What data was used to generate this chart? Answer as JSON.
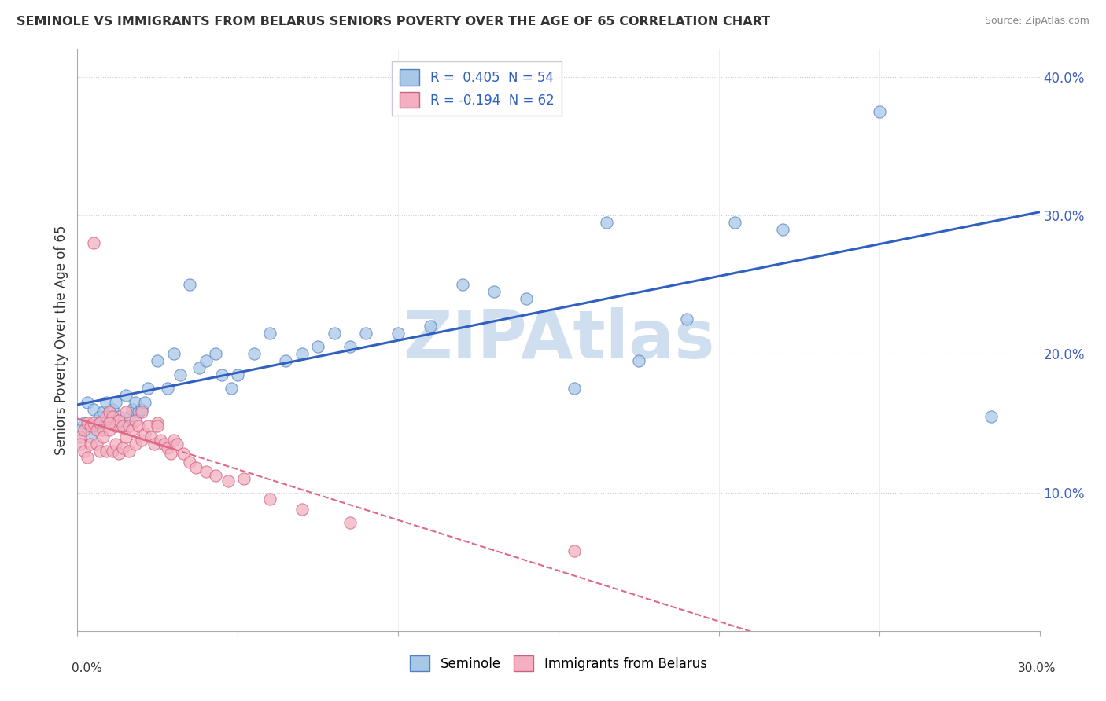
{
  "title": "SEMINOLE VS IMMIGRANTS FROM BELARUS SENIORS POVERTY OVER THE AGE OF 65 CORRELATION CHART",
  "source": "Source: ZipAtlas.com",
  "ylabel": "Seniors Poverty Over the Age of 65",
  "xlim": [
    0.0,
    0.3
  ],
  "ylim": [
    0.0,
    0.42
  ],
  "blue_color": "#a8c8e8",
  "blue_edge_color": "#5580c0",
  "pink_color": "#f4b0c0",
  "pink_edge_color": "#d06080",
  "blue_line_color": "#3060c0",
  "pink_line_color": "#e06888",
  "watermark": "ZIPAtlas",
  "watermark_color": "#d0dff0",
  "background_color": "#ffffff",
  "seminole_label": "Seminole",
  "belarus_label": "Immigrants from Belarus",
  "legend1_r": "0.405",
  "legend1_n": "54",
  "legend2_r": "-0.194",
  "legend2_n": "62",
  "seminole_x": [
    0.001,
    0.002,
    0.003,
    0.004,
    0.005,
    0.006,
    0.007,
    0.008,
    0.009,
    0.01,
    0.011,
    0.012,
    0.013,
    0.014,
    0.015,
    0.016,
    0.017,
    0.018,
    0.019,
    0.02,
    0.021,
    0.022,
    0.025,
    0.028,
    0.03,
    0.032,
    0.035,
    0.038,
    0.04,
    0.043,
    0.045,
    0.048,
    0.05,
    0.055,
    0.06,
    0.065,
    0.07,
    0.075,
    0.08,
    0.085,
    0.09,
    0.1,
    0.11,
    0.12,
    0.13,
    0.14,
    0.155,
    0.165,
    0.175,
    0.19,
    0.205,
    0.22,
    0.25,
    0.285
  ],
  "seminole_y": [
    0.145,
    0.15,
    0.165,
    0.14,
    0.16,
    0.148,
    0.155,
    0.158,
    0.165,
    0.155,
    0.16,
    0.165,
    0.155,
    0.148,
    0.17,
    0.155,
    0.16,
    0.165,
    0.158,
    0.16,
    0.165,
    0.175,
    0.195,
    0.175,
    0.2,
    0.185,
    0.25,
    0.19,
    0.195,
    0.2,
    0.185,
    0.175,
    0.185,
    0.2,
    0.215,
    0.195,
    0.2,
    0.205,
    0.215,
    0.205,
    0.215,
    0.215,
    0.22,
    0.25,
    0.245,
    0.24,
    0.175,
    0.295,
    0.195,
    0.225,
    0.295,
    0.29,
    0.375,
    0.155
  ],
  "belarus_x": [
    0.001,
    0.001,
    0.002,
    0.002,
    0.003,
    0.003,
    0.004,
    0.004,
    0.005,
    0.005,
    0.006,
    0.006,
    0.007,
    0.007,
    0.008,
    0.008,
    0.009,
    0.009,
    0.01,
    0.01,
    0.011,
    0.011,
    0.012,
    0.012,
    0.013,
    0.013,
    0.014,
    0.014,
    0.015,
    0.015,
    0.016,
    0.016,
    0.017,
    0.018,
    0.018,
    0.019,
    0.02,
    0.02,
    0.021,
    0.022,
    0.023,
    0.024,
    0.025,
    0.026,
    0.027,
    0.028,
    0.029,
    0.03,
    0.031,
    0.033,
    0.035,
    0.037,
    0.04,
    0.043,
    0.047,
    0.052,
    0.06,
    0.07,
    0.085,
    0.01,
    0.155,
    0.025
  ],
  "belarus_y": [
    0.14,
    0.135,
    0.145,
    0.13,
    0.15,
    0.125,
    0.148,
    0.135,
    0.28,
    0.15,
    0.145,
    0.135,
    0.15,
    0.13,
    0.145,
    0.14,
    0.155,
    0.13,
    0.158,
    0.145,
    0.155,
    0.13,
    0.148,
    0.135,
    0.152,
    0.128,
    0.148,
    0.132,
    0.158,
    0.14,
    0.148,
    0.13,
    0.145,
    0.152,
    0.135,
    0.148,
    0.158,
    0.138,
    0.142,
    0.148,
    0.14,
    0.135,
    0.15,
    0.138,
    0.135,
    0.132,
    0.128,
    0.138,
    0.135,
    0.128,
    0.122,
    0.118,
    0.115,
    0.112,
    0.108,
    0.11,
    0.095,
    0.088,
    0.078,
    0.15,
    0.058,
    0.148
  ]
}
